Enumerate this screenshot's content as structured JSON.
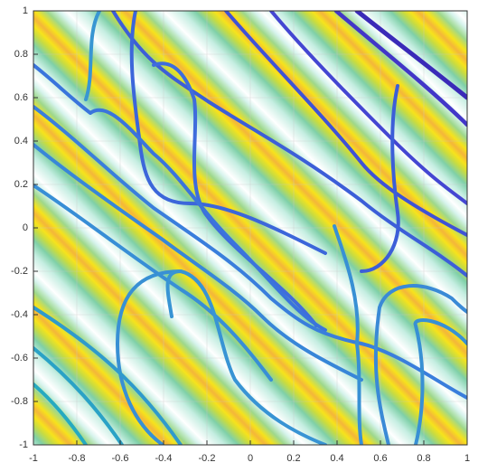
{
  "chart_data": {
    "type": "contour",
    "xlim": [
      -1,
      1
    ],
    "ylim": [
      -1,
      1
    ],
    "xticks": [
      -1,
      -0.8,
      -0.6,
      -0.4,
      -0.2,
      0,
      0.2,
      0.4,
      0.6,
      0.8,
      1
    ],
    "yticks": [
      -1,
      -0.8,
      -0.6,
      -0.4,
      -0.2,
      0,
      0.2,
      0.4,
      0.6,
      0.8,
      1
    ],
    "grid": true
  }
}
